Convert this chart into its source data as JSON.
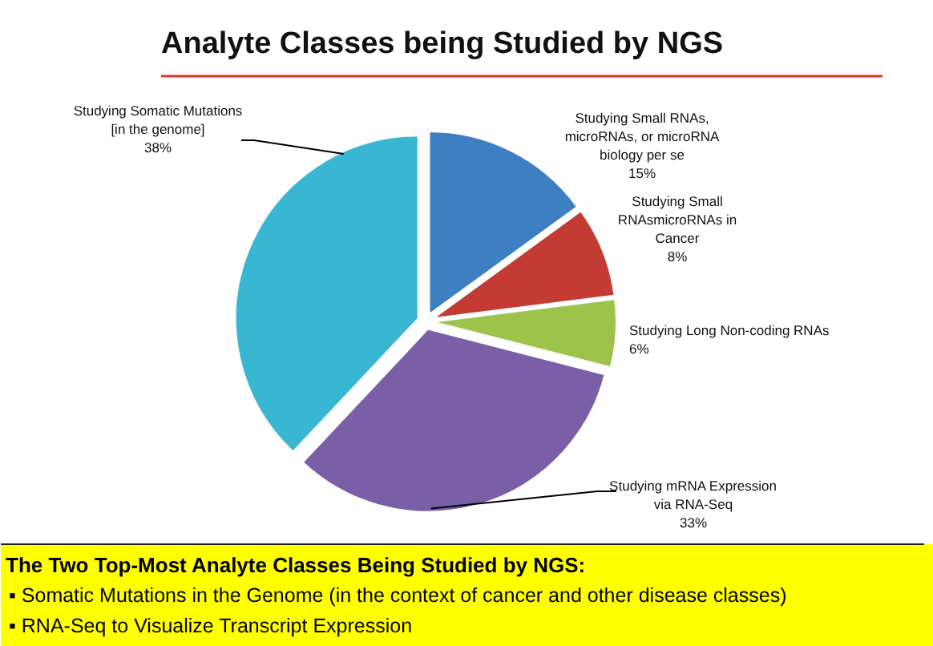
{
  "chart_data": {
    "type": "pie",
    "title": "Analyte Classes being Studied by NGS",
    "categories": [
      "Studying Small RNAs, microRNAs, or microRNA biology per se",
      "Studying Small RNAsmicroRNAs in Cancer",
      "Studying Long Non-coding RNAs",
      "Studying mRNA Expression via RNA-Seq",
      "Studying Somatic Mutations [in the genome]"
    ],
    "values": [
      15,
      8,
      6,
      33,
      38
    ],
    "colors": [
      "#3d7fc1",
      "#c43b33",
      "#9cc44a",
      "#7a5fa6",
      "#39b6d2"
    ],
    "value_labels": [
      "15%",
      "8%",
      "6%",
      "33%",
      "38%"
    ],
    "annotations": [
      "The Two Top-Most Analyte Classes Being Studied by NGS:",
      "▪ Somatic Mutations in the Genome (in the context of cancer and other disease classes)",
      "▪ RNA-Seq to Visualize Transcript Expression"
    ]
  }
}
